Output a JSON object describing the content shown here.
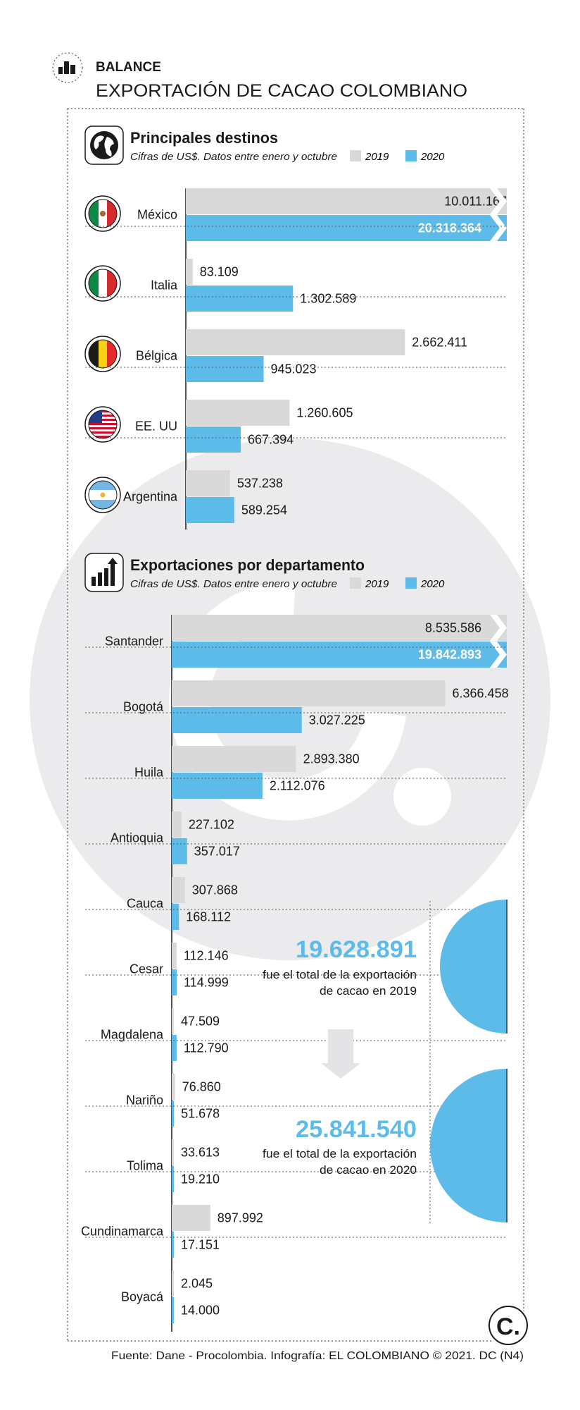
{
  "header": {
    "kicker": "BALANCE",
    "title": "EXPORTACIÓN DE CACAO COLOMBIANO"
  },
  "colors": {
    "y2019": "#d9d9da",
    "y2020": "#5dbbea",
    "watermark": "#ebebed",
    "text": "#1a1a1a",
    "highlight": "#5dbbea"
  },
  "legend": {
    "y2019": "2019",
    "y2020": "2020"
  },
  "chart_data": [
    {
      "type": "bar",
      "orientation": "horizontal",
      "title": "Principales destinos",
      "subtitle": "Cifras de US$. Datos entre enero y octubre",
      "icon": "globe-icon",
      "categories": [
        "México",
        "Italia",
        "Bélgica",
        "EE. UU",
        "Argentina"
      ],
      "flags": [
        "mexico-flag-icon",
        "italy-flag-icon",
        "belgium-flag-icon",
        "usa-flag-icon",
        "argentina-flag-icon"
      ],
      "series": [
        {
          "name": "2019",
          "values": [
            10011167,
            83109,
            2662411,
            1260605,
            537238
          ],
          "labels": [
            "10.011.167",
            "83.109",
            "2.662.411",
            "1.260.605",
            "537.238"
          ]
        },
        {
          "name": "2020",
          "values": [
            20318364,
            1302589,
            945023,
            667394,
            589254
          ],
          "labels": [
            "20.318.364",
            "1.302.589",
            "945.023",
            "667.394",
            "589.254"
          ]
        }
      ],
      "axis_break": "México"
    },
    {
      "type": "bar",
      "orientation": "horizontal",
      "title": "Exportaciones por departamento",
      "subtitle": "Cifras de US$. Datos entre enero y octubre",
      "icon": "growth-chart-icon",
      "categories": [
        "Santander",
        "Bogotá",
        "Huila",
        "Antioquia",
        "Cauca",
        "Cesar",
        "Magdalena",
        "Nariño",
        "Tolima",
        "Cundinamarca",
        "Boyacá"
      ],
      "series": [
        {
          "name": "2019",
          "values": [
            8535586,
            6366458,
            2893380,
            227102,
            307868,
            112146,
            47509,
            76860,
            33613,
            897992,
            2045
          ],
          "labels": [
            "8.535.586",
            "6.366.458",
            "2.893.380",
            "227.102",
            "307.868",
            "112.146",
            "47.509",
            "76.860",
            "33.613",
            "897.992",
            "2.045"
          ]
        },
        {
          "name": "2020",
          "values": [
            19842893,
            3027225,
            2112076,
            357017,
            168112,
            114999,
            112790,
            51678,
            19210,
            17151,
            14000
          ],
          "labels": [
            "19.842.893",
            "3.027.225",
            "2.112.076",
            "357.017",
            "168.112",
            "114.999",
            "112.790",
            "51.678",
            "19.210",
            "17.151",
            "14.000"
          ]
        }
      ],
      "axis_break": "Santander"
    }
  ],
  "totals": {
    "y2019": {
      "value": 19628891,
      "label": "19.628.891",
      "line1": "fue el total de la exportación",
      "line2": "de cacao en 2019"
    },
    "y2020": {
      "value": 25841540,
      "label": "25.841.540",
      "line1": "fue el total de la exportación",
      "line2": "de cacao en 2020"
    }
  },
  "footer": {
    "source": "Fuente: Dane - Procolombia. Infografía: EL COLOMBIANO © 2021. DC (N4)",
    "logo": "C."
  }
}
